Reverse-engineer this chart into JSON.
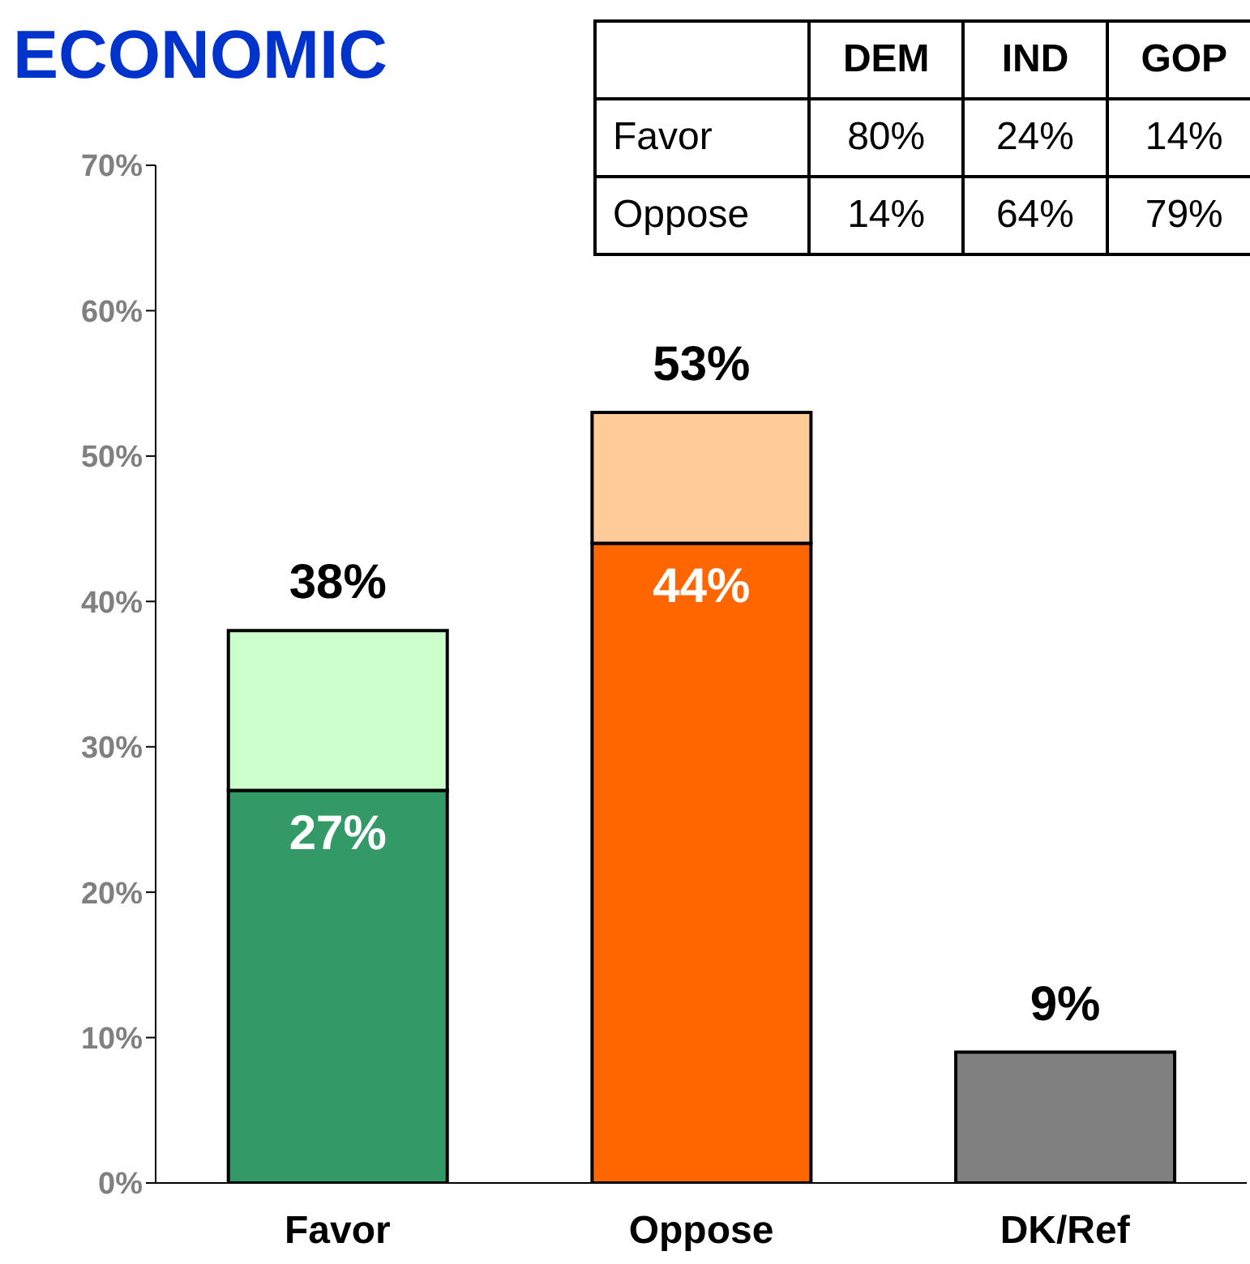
{
  "chart_data": [
    {
      "type": "bar",
      "title": "ECONOMIC",
      "categories": [
        "Favor",
        "Oppose",
        "DK/Ref"
      ],
      "stacked": true,
      "series": [
        {
          "values": [
            27,
            44,
            9
          ],
          "colors": [
            "#339966",
            "#ff6600",
            "#808080"
          ],
          "value_labels": [
            "27%",
            "44%",
            null
          ]
        },
        {
          "values": [
            11,
            9,
            null
          ],
          "colors": [
            "#ccffcc",
            "#ffcc99",
            "#ffffff"
          ]
        }
      ],
      "totals": [
        "38%",
        "53%",
        "9%"
      ],
      "ylim": [
        0,
        70
      ],
      "yticks": [
        {
          "value": 0,
          "label": "0%"
        },
        {
          "value": 10,
          "label": "10%"
        },
        {
          "value": 20,
          "label": "20%"
        },
        {
          "value": 30,
          "label": "30%"
        },
        {
          "value": 40,
          "label": "40%"
        },
        {
          "value": 50,
          "label": "50%"
        },
        {
          "value": 60,
          "label": "60%"
        },
        {
          "value": 70,
          "label": "70%"
        }
      ],
      "grid": false,
      "legend": false
    },
    {
      "type": "other",
      "categories": [
        "DEM",
        "IND",
        "GOP"
      ],
      "y_categories": [
        "Favor",
        "Oppose"
      ],
      "cell_labels": [
        [
          "80%",
          "24%",
          "14%"
        ],
        [
          "14%",
          "64%",
          "79%"
        ]
      ]
    }
  ]
}
